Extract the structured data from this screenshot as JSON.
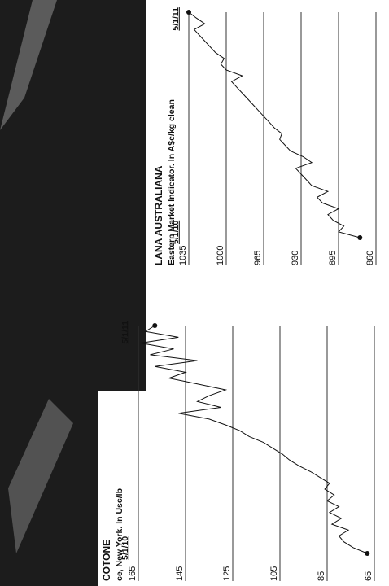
{
  "chart_data": [
    {
      "type": "line",
      "title": "COTONE",
      "subtitle": "ce, New York. In Usc/lb",
      "categories": [
        "5/1/10",
        null,
        null,
        null,
        null,
        null,
        null,
        null,
        null,
        null,
        null,
        null,
        null,
        null,
        null,
        null,
        null,
        null,
        null,
        null,
        null,
        null,
        null,
        null,
        null,
        null,
        null,
        null,
        null,
        null,
        null,
        null,
        null,
        null,
        null,
        null,
        null,
        null,
        null,
        "5/1/11"
      ],
      "series": [
        {
          "color": "#111111",
          "values": [
            68,
            74,
            78,
            80,
            76,
            83,
            79,
            84,
            80,
            85,
            82,
            86,
            84,
            88,
            92,
            97,
            101,
            104,
            108,
            112,
            118,
            122,
            128,
            135,
            148,
            130,
            140,
            135,
            128,
            140,
            152,
            145,
            158,
            140,
            160,
            150,
            164,
            148,
            162,
            158
          ]
        }
      ],
      "ylim": [
        65,
        165
      ],
      "yticks": [
        165,
        145,
        125,
        105,
        85,
        65
      ],
      "grid": true
    },
    {
      "type": "line",
      "title": "LANA AUSTRALIANA",
      "subtitle": "Eastern Market Indicator. In A$c/kg clean",
      "categories": [
        "5/1/10",
        null,
        null,
        null,
        null,
        null,
        null,
        null,
        null,
        null,
        null,
        null,
        null,
        null,
        null,
        null,
        null,
        null,
        null,
        null,
        null,
        null,
        null,
        null,
        null,
        null,
        null,
        null,
        null,
        null,
        null,
        null,
        null,
        null,
        null,
        null,
        null,
        null,
        null,
        "5/1/11"
      ],
      "series": [
        {
          "color": "#111111",
          "values": [
            875,
            895,
            890,
            900,
            905,
            895,
            910,
            915,
            905,
            920,
            925,
            930,
            935,
            920,
            928,
            940,
            945,
            950,
            948,
            955,
            960,
            965,
            970,
            975,
            980,
            985,
            990,
            995,
            985,
            1000,
            1005,
            1002,
            1010,
            1015,
            1020,
            1025,
            1030,
            1020,
            1028,
            1035
          ]
        }
      ],
      "ylim": [
        860,
        1035
      ],
      "yticks": [
        1035,
        1000,
        965,
        930,
        895,
        860
      ],
      "grid": true
    }
  ]
}
